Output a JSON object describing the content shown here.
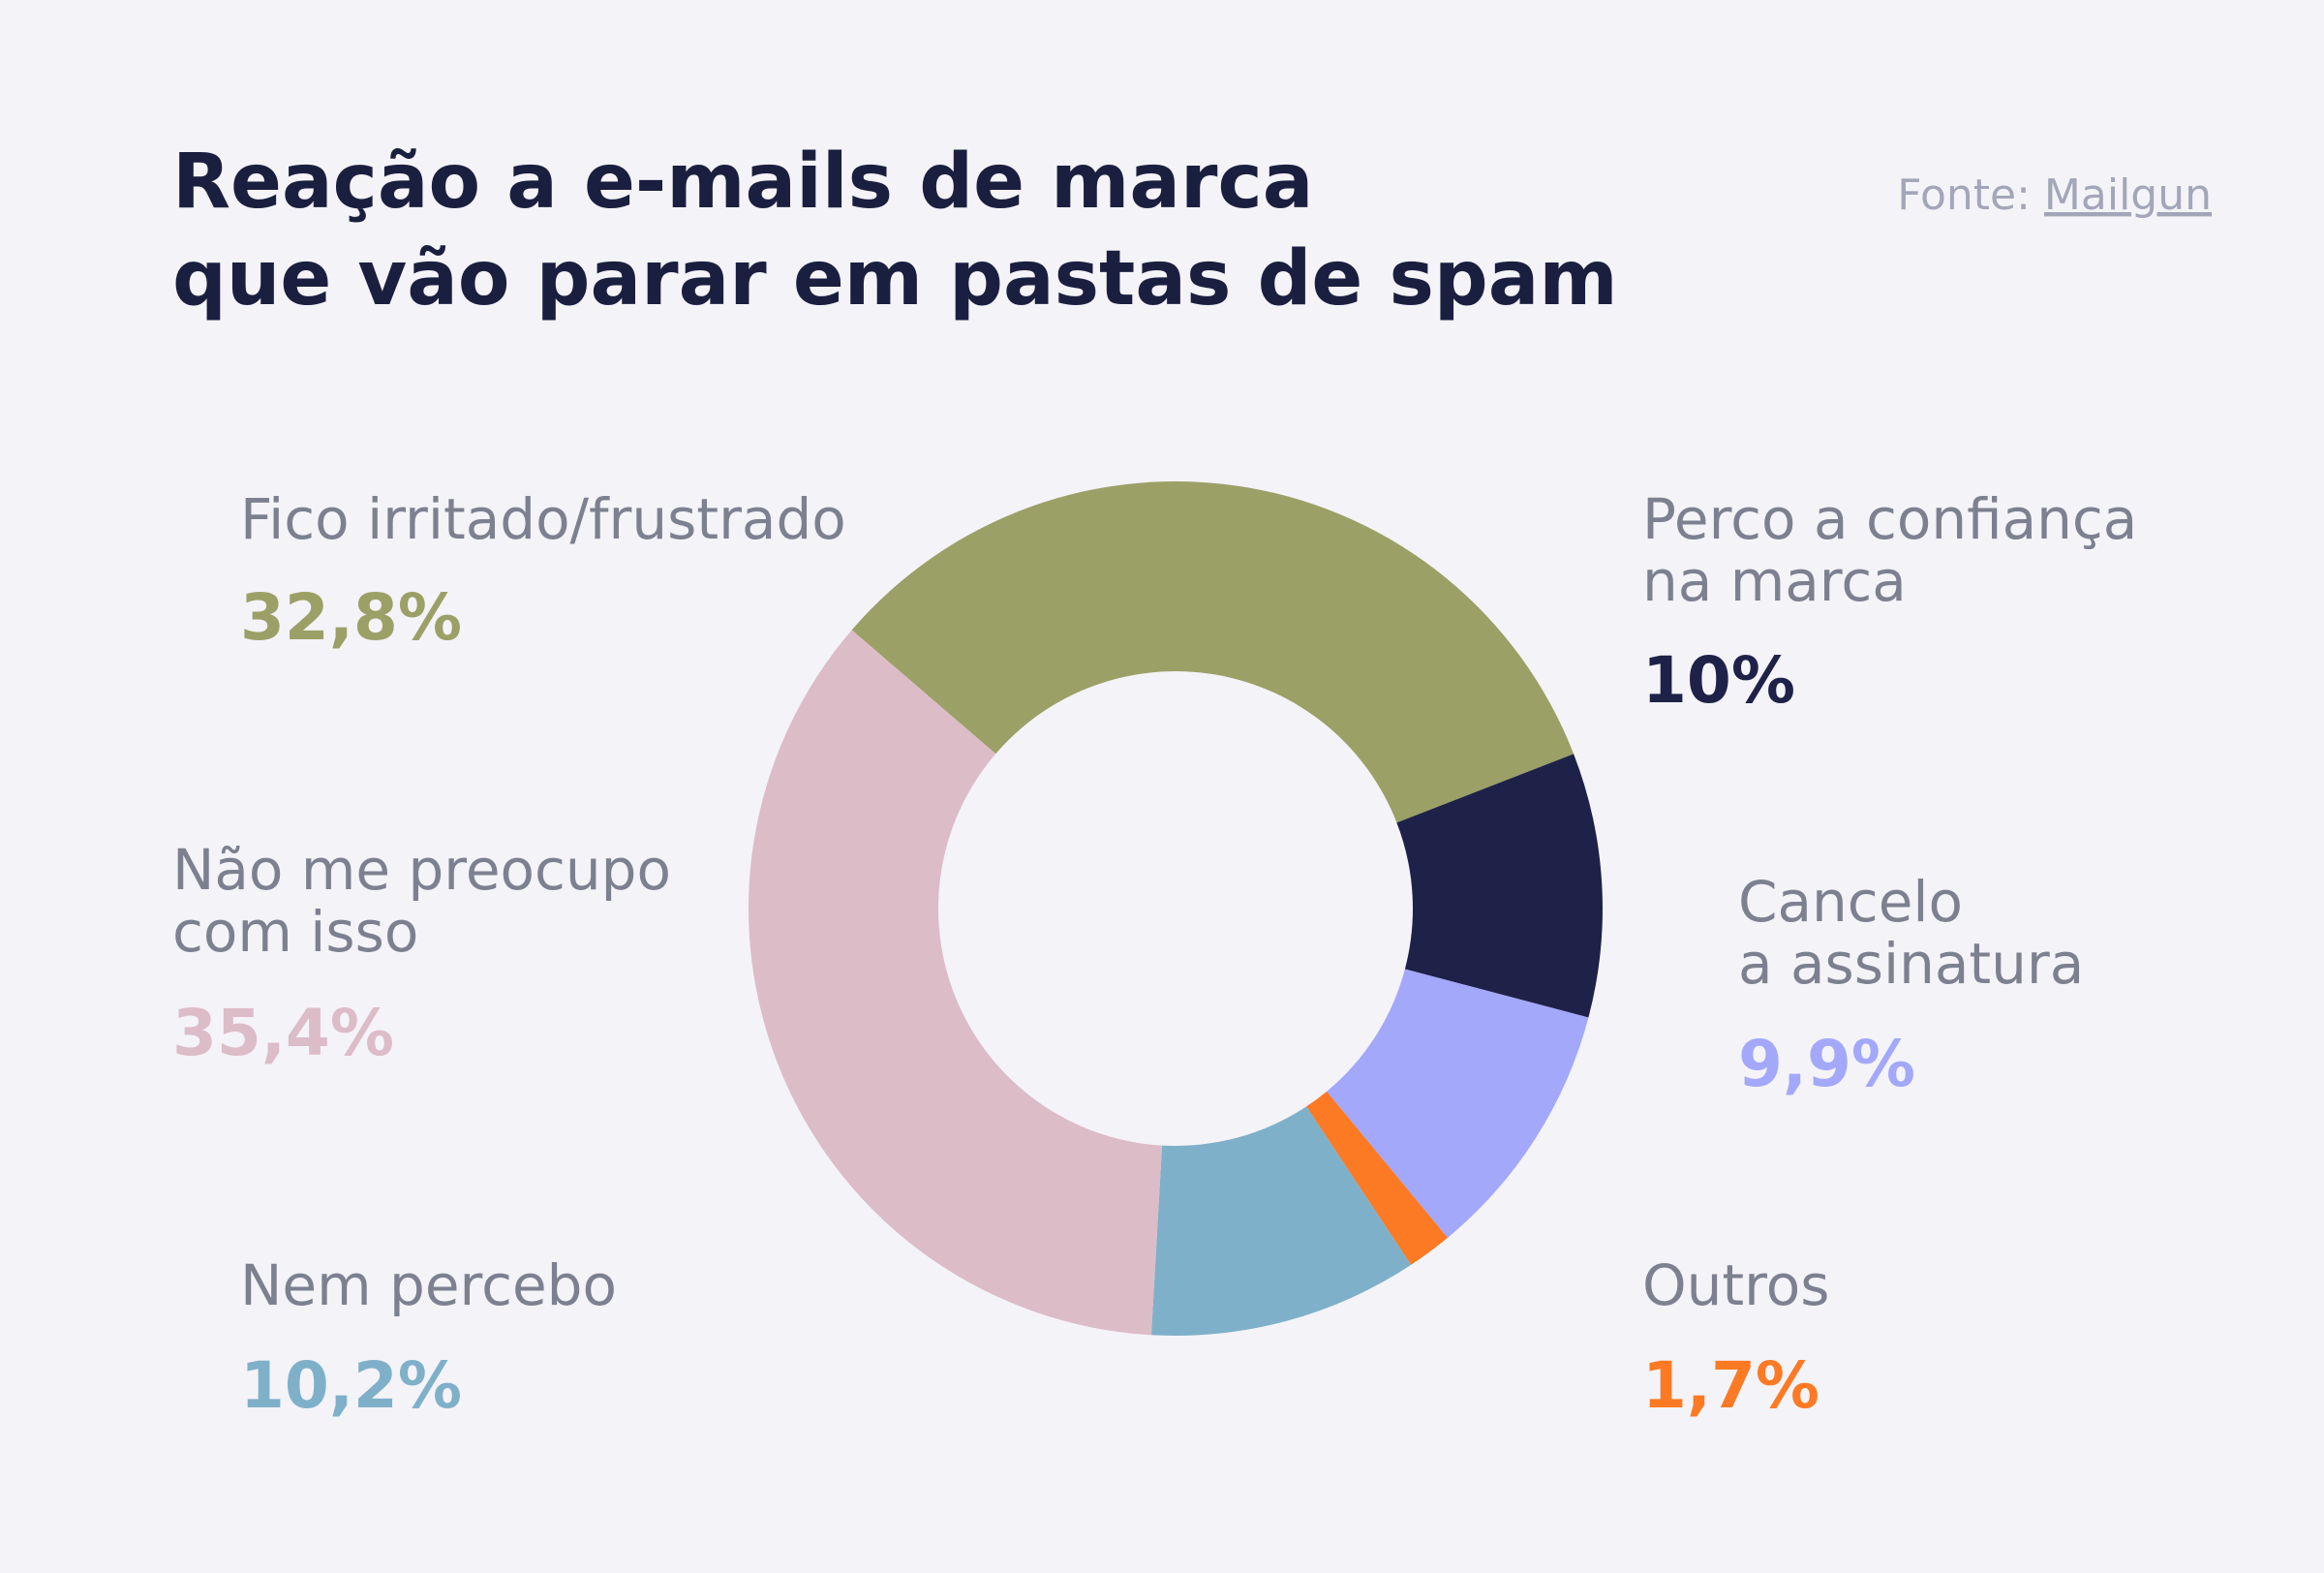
{
  "chart_data": {
    "type": "donut",
    "title": [
      "Reação a e-mails de marca",
      "que vão parar em pastas de spam"
    ],
    "source_label": "Fonte:",
    "source": "Mailgun",
    "categories": [
      "Fico irritado/frustrado",
      "Perco a confiança\nna marca",
      "Cancelo\na assinatura",
      "Outros",
      "Nem percebo",
      "Não me preocupo\ncom isso"
    ],
    "values": [
      32.8,
      10,
      9.9,
      1.7,
      10.2,
      35.4
    ],
    "value_labels": [
      "32,8%",
      "10%",
      "9,9%",
      "1,7%",
      "10,2%",
      "35,4%"
    ],
    "colors": [
      "#9ba066",
      "#1e2248",
      "#a3a8fb",
      "#fc7a24",
      "#7fb0c9",
      "#dcbcc7"
    ]
  }
}
